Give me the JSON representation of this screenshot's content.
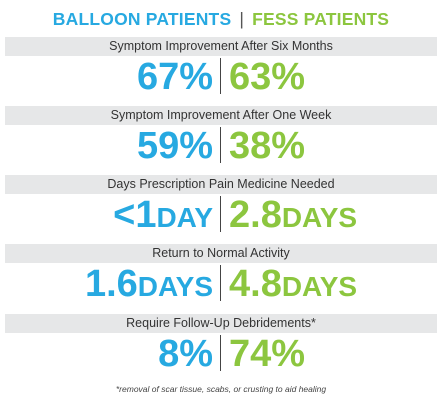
{
  "header": {
    "left": "BALLOON PATIENTS",
    "separator": "|",
    "right": "FESS PATIENTS"
  },
  "colors": {
    "balloon": "#27A9E1",
    "fess": "#8CC63F",
    "band": "#E6E7E8"
  },
  "chart_data": {
    "type": "table",
    "series": [
      {
        "name": "BALLOON PATIENTS",
        "color": "#27A9E1"
      },
      {
        "name": "FESS PATIENTS",
        "color": "#8CC63F"
      }
    ],
    "metrics": [
      {
        "label": "Symptom Improvement After Six Months",
        "balloon": "67%",
        "fess": "63%"
      },
      {
        "label": "Symptom Improvement After One Week",
        "balloon": "59%",
        "fess": "38%"
      },
      {
        "label": "Days Prescription Pain Medicine Needed",
        "balloon": "<1DAY",
        "fess": "2.8DAYS"
      },
      {
        "label": "Return to Normal Activity",
        "balloon": "1.6DAYS",
        "fess": "4.8DAYS"
      },
      {
        "label": "Require Follow-Up Debridements*",
        "balloon": "8%",
        "fess": "74%"
      }
    ],
    "footnote": "*removal of scar tissue, scabs, or crusting to aid healing"
  }
}
